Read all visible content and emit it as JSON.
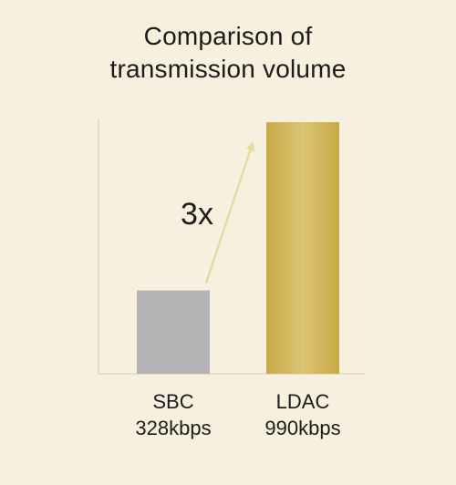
{
  "chart_data": {
    "type": "bar",
    "title_lines": [
      "Comparison of",
      "transmission volume"
    ],
    "categories": [
      "SBC",
      "LDAC"
    ],
    "value_labels": [
      "328kbps",
      "990kbps"
    ],
    "values": [
      328,
      990
    ],
    "unit": "kbps",
    "ylim": [
      0,
      990
    ],
    "grid": false,
    "annotation": {
      "text": "3x"
    },
    "colors": {
      "SBC": "#b4b4b4",
      "LDAC": "#d2b660",
      "arrow": "#e8da9e",
      "axis": "#e0d8c4"
    }
  }
}
